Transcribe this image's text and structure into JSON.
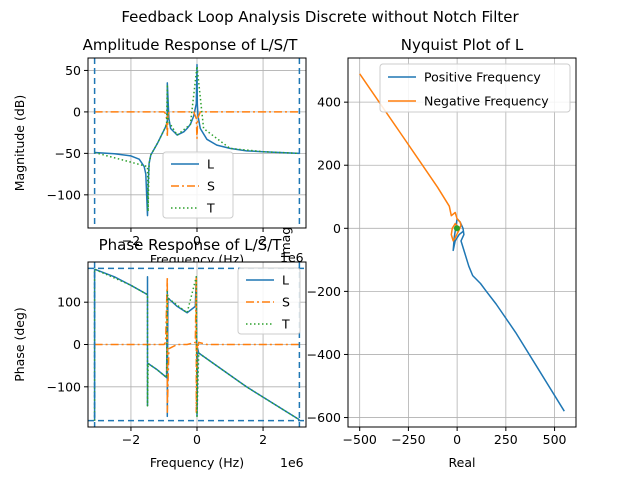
{
  "figure": {
    "suptitle": "Feedback Loop Analysis Discrete without Notch Filter"
  },
  "chart_data": [
    {
      "id": "amplitude",
      "type": "line",
      "title": "Amplitude Response of L/S/T",
      "xlabel": "Frequency (Hz)",
      "ylabel": "Magnitude (dB)",
      "x_exponent_label": "1e6",
      "xlim": [
        -3.3,
        3.3
      ],
      "ylim": [
        -140,
        65
      ],
      "x_unit_scale": 1000000,
      "xticks": [
        -2,
        0,
        2
      ],
      "xtick_labels": [
        "−2",
        "0",
        "2"
      ],
      "yticks": [
        -100,
        -50,
        0,
        50
      ],
      "ytick_labels": [
        "−100",
        "−50",
        "0",
        "50"
      ],
      "grid": true,
      "legend": "lower-center",
      "vlines": {
        "x": [
          -3.1,
          3.1
        ],
        "color": "#1f77b4",
        "style": "dashed"
      },
      "series": [
        {
          "name": "L",
          "color": "#1f77b4",
          "style": "solid",
          "x": [
            -3.1,
            -2.5,
            -2.0,
            -1.75,
            -1.6,
            -1.55,
            -1.5,
            -1.48,
            -1.45,
            -1.4,
            -1.3,
            -1.2,
            -1.1,
            -1.0,
            -0.95,
            -0.9,
            -0.9,
            -0.85,
            -0.8,
            -0.6,
            -0.4,
            -0.3,
            -0.2,
            -0.1,
            -0.02,
            0,
            0.01,
            0.03,
            0.1,
            0.3,
            0.6,
            1.0,
            1.5,
            2.0,
            2.5,
            3.1
          ],
          "y": [
            -49,
            -50.5,
            -53,
            -57,
            -66,
            -75,
            -125,
            -90,
            -62,
            -52,
            -45,
            -38,
            -30,
            -22,
            -18,
            -12,
            35,
            -8,
            -20,
            -28,
            -24,
            -20,
            -15,
            -5,
            10,
            57,
            10,
            -5,
            -20,
            -33,
            -40,
            -44,
            -47,
            -48,
            -49,
            -50
          ]
        },
        {
          "name": "S",
          "color": "#ff7f0e",
          "style": "dashdot",
          "x": [
            -3.1,
            -1.0,
            -0.95,
            -0.92,
            -0.9,
            -0.88,
            -0.85,
            -0.8,
            -0.1,
            -0.02,
            0,
            0.02,
            0.1,
            3.1
          ],
          "y": [
            0,
            0,
            -2,
            -8,
            -30,
            -5,
            -1,
            0,
            0,
            -8,
            -32,
            -8,
            0,
            0
          ]
        },
        {
          "name": "T",
          "color": "#2ca02c",
          "style": "dotted",
          "x": [
            -3.1,
            -1.5,
            -1.48,
            -1.45,
            -1.4,
            -1.2,
            -1.0,
            -0.92,
            -0.9,
            -0.88,
            -0.6,
            -0.2,
            0,
            0.2,
            1.0,
            2.0,
            3.1
          ],
          "y": [
            -49,
            -66,
            -120,
            -62,
            -52,
            -38,
            -22,
            -15,
            33,
            -10,
            -28,
            -15,
            55,
            -20,
            -44,
            -48,
            -50
          ]
        }
      ]
    },
    {
      "id": "phase",
      "type": "line",
      "title": "Phase Response of L/S/T",
      "xlabel": "Frequency (Hz)",
      "ylabel": "Phase (deg)",
      "x_exponent_label": "1e6",
      "xlim": [
        -3.3,
        3.3
      ],
      "ylim": [
        -195,
        195
      ],
      "x_unit_scale": 1000000,
      "xticks": [
        -2,
        0,
        2
      ],
      "xtick_labels": [
        "−2",
        "0",
        "2"
      ],
      "yticks": [
        -100,
        0,
        100
      ],
      "ytick_labels": [
        "−100",
        "0",
        "100"
      ],
      "grid": true,
      "legend": "upper-right",
      "vlines": {
        "x": [
          -3.1,
          3.1
        ],
        "color": "#1f77b4",
        "style": "dashed"
      },
      "hlines": {
        "y": [
          -180,
          180
        ],
        "color": "#1f77b4",
        "style": "dashed"
      },
      "series": [
        {
          "name": "L",
          "color": "#1f77b4",
          "style": "solid",
          "x": [
            -3.1,
            -3.1,
            -2.5,
            -2.0,
            -1.5,
            -1.5,
            -1.5,
            -1.5,
            -1.48,
            -1.2,
            -0.92,
            -0.9,
            -0.9,
            -0.88,
            -0.6,
            -0.3,
            -0.05,
            -0.02,
            0,
            0.02,
            0.05,
            0.5,
            1.5,
            3.1
          ],
          "y": [
            -180,
            178,
            160,
            140,
            118,
            160,
            -145,
            -45,
            -45,
            -60,
            -78,
            130,
            -170,
            110,
            90,
            75,
            90,
            160,
            -170,
            -10,
            -20,
            -45,
            -100,
            -178
          ]
        },
        {
          "name": "S",
          "color": "#ff7f0e",
          "style": "dashdot",
          "x": [
            -3.1,
            -1.0,
            -0.95,
            -0.9,
            -0.9,
            -0.85,
            -0.6,
            -0.3,
            -0.05,
            -0.02,
            -0.02,
            0,
            0.02,
            0.05,
            0.3,
            3.1
          ],
          "y": [
            0,
            0,
            5,
            160,
            -160,
            -10,
            0,
            0,
            5,
            160,
            -160,
            0,
            -10,
            5,
            0,
            0
          ]
        },
        {
          "name": "T",
          "color": "#2ca02c",
          "style": "dotted",
          "x": [
            -3.1,
            -3.1,
            -2.0,
            -1.5,
            -1.5,
            -1.48,
            -1.2,
            -0.92,
            -0.9,
            -0.88,
            -0.3,
            -0.02,
            0,
            0.05,
            0.5,
            1.5,
            3.1
          ],
          "y": [
            -180,
            178,
            140,
            118,
            -145,
            -45,
            -60,
            -78,
            125,
            110,
            75,
            160,
            -170,
            -20,
            -45,
            -100,
            -178
          ]
        }
      ]
    },
    {
      "id": "nyquist",
      "type": "line",
      "title": "Nyquist Plot of L",
      "xlabel": "Real",
      "ylabel": "Imag",
      "xlim": [
        -560,
        610
      ],
      "ylim": [
        -630,
        540
      ],
      "xticks": [
        -500,
        -250,
        0,
        250,
        500
      ],
      "xtick_labels": [
        "−500",
        "−250",
        "0",
        "250",
        "500"
      ],
      "yticks": [
        -600,
        -400,
        -200,
        0,
        200,
        400
      ],
      "ytick_labels": [
        "−600",
        "−400",
        "−200",
        "0",
        "200",
        "400"
      ],
      "grid": true,
      "legend": "upper-right",
      "marker": {
        "x": [
          -1
        ],
        "y": [
          0
        ],
        "color": "#2ca02c"
      },
      "series": [
        {
          "name": "Positive Frequency",
          "color": "#1f77b4",
          "style": "solid",
          "x": [
            550,
            420,
            300,
            200,
            150,
            120,
            80,
            60,
            40,
            20,
            35,
            30,
            15,
            0,
            -15,
            -20,
            -10,
            10,
            30
          ],
          "y": [
            -580,
            -450,
            -330,
            -240,
            -200,
            -175,
            -150,
            -120,
            -80,
            -40,
            -20,
            0,
            20,
            30,
            -30,
            -70,
            -40,
            -20,
            -10
          ]
        },
        {
          "name": "Negative Frequency",
          "color": "#ff7f0e",
          "style": "solid",
          "x": [
            -500,
            -400,
            -300,
            -200,
            -100,
            -40,
            -30,
            -10,
            0,
            15,
            20,
            10,
            -10,
            -20,
            -30,
            -25,
            -10,
            5,
            -5
          ],
          "y": [
            490,
            400,
            310,
            220,
            130,
            70,
            40,
            50,
            30,
            20,
            10,
            -5,
            -30,
            -40,
            -20,
            0,
            15,
            5,
            0
          ]
        }
      ]
    }
  ]
}
